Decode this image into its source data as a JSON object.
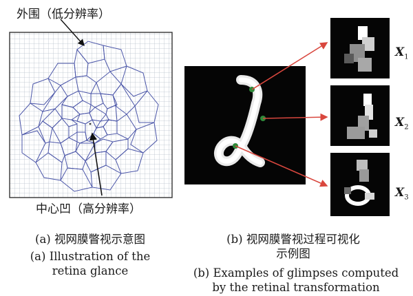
{
  "panel_a": {
    "periphery_label": "外围（低分辨率）",
    "fovea_label": "中心凹（高分辨率）",
    "caption_cn": "(a) 视网膜瞥视示意图",
    "caption_en_1": "(a) Illustration of the",
    "caption_en_2": "retina glance"
  },
  "panel_b": {
    "caption_cn_1": "(b) 视网膜瞥视过程可视化",
    "caption_cn_2": "示例图",
    "caption_en_1": "(b) Examples of glimpses computed",
    "caption_en_2": "by the retinal transformation",
    "glimpses": [
      {
        "letter": "X",
        "sub": "1"
      },
      {
        "letter": "X",
        "sub": "2"
      },
      {
        "letter": "X",
        "sub": "3"
      }
    ]
  },
  "colors": {
    "grid": "#b9c1cc",
    "cells": "#4a55a8",
    "arrow_red": "#d9473e",
    "marker_green": "#2f8a3a"
  }
}
